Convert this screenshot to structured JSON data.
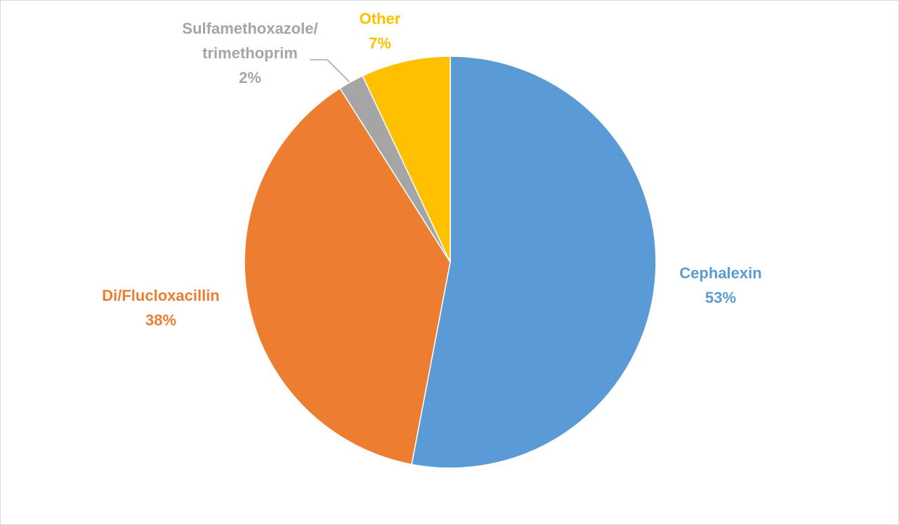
{
  "chart_data": {
    "type": "pie",
    "categories": [
      "Cephalexin",
      "Di/Flucloxacillin",
      "Sulfamethoxazole/\ntrimethoprim",
      "Other"
    ],
    "values": [
      53,
      38,
      2,
      7
    ],
    "value_labels": [
      "53%",
      "38%",
      "2%",
      "7%"
    ],
    "colors": [
      "#5b9bd5",
      "#ed7d31",
      "#a5a5a5",
      "#ffc000"
    ]
  }
}
